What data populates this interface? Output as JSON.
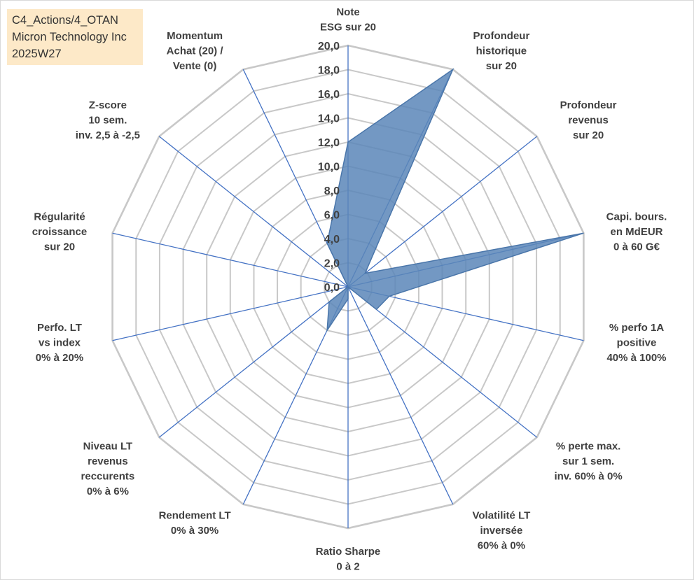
{
  "header": {
    "lines": [
      "C4_Actions/4_OTAN",
      "Micron Technology Inc",
      "2025W27"
    ]
  },
  "chart_data": {
    "type": "radar",
    "rlim": [
      0,
      20
    ],
    "tick_step": 2,
    "ticks": [
      "0,0",
      "2,0",
      "4,0",
      "6,0",
      "8,0",
      "10,0",
      "12,0",
      "14,0",
      "16,0",
      "18,0",
      "20,0"
    ],
    "grid": true,
    "axes": [
      {
        "label": [
          "Note",
          "ESG sur 20"
        ]
      },
      {
        "label": [
          "Profondeur",
          "historique",
          "sur 20"
        ]
      },
      {
        "label": [
          "Profondeur",
          "revenus",
          "sur 20"
        ]
      },
      {
        "label": [
          "Capi. bours.",
          "en MdEUR",
          "0 à 60 G€"
        ]
      },
      {
        "label": [
          "% perfo 1A",
          "positive",
          "40% à 100%"
        ]
      },
      {
        "label": [
          "% perte max.",
          "sur 1 sem.",
          "inv. 60% à 0%"
        ]
      },
      {
        "label": [
          "Volatilité LT",
          "inversée",
          "60% à 0%"
        ]
      },
      {
        "label": [
          "Ratio Sharpe",
          "0 à 2"
        ]
      },
      {
        "label": [
          "Rendement LT",
          "0% à 30%"
        ]
      },
      {
        "label": [
          "Niveau LT",
          "revenus",
          "reccurents",
          "0% à 6%"
        ]
      },
      {
        "label": [
          "Perfo. LT",
          "vs index",
          "0% à 20%"
        ]
      },
      {
        "label": [
          "Régularité",
          "croissance",
          "sur 20"
        ]
      },
      {
        "label": [
          "Z-score",
          "10 sem.",
          "inv. 2,5 à -2,5"
        ]
      },
      {
        "label": [
          "Momentum",
          "Achat (20) /",
          "Vente (0)"
        ]
      }
    ],
    "series": [
      {
        "values": [
          12.0,
          20.0,
          1.8,
          20.0,
          3.5,
          3.0,
          0.0,
          1.0,
          4.0,
          2.0,
          0.0,
          0.0,
          0.0,
          4.0
        ]
      }
    ],
    "colors": {
      "fill": "#5b86b8",
      "grid": "#c8c8c8",
      "spoke": "#4472c4",
      "text": "#404040"
    }
  }
}
